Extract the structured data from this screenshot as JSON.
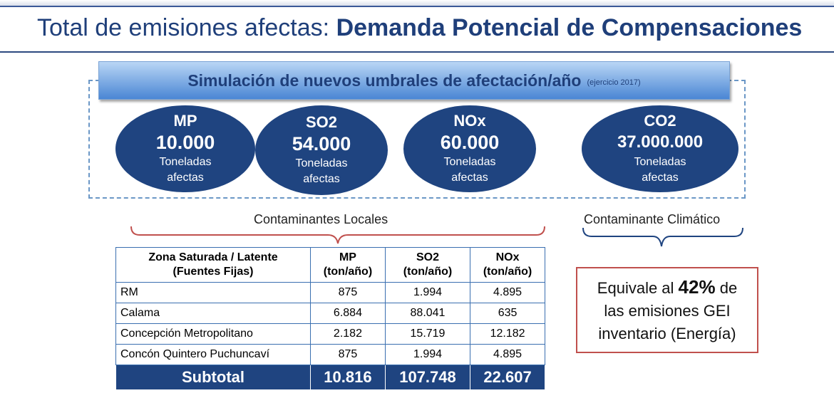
{
  "header": {
    "title_plain": "Total de emisiones afectas: ",
    "title_bold": "Demanda Potencial de Compensaciones"
  },
  "banner": {
    "text": "Simulación de nuevos umbrales de afectación/año",
    "note": "(ejercicio 2017)"
  },
  "pollutants": [
    {
      "name": "MP",
      "value": "10.000",
      "unit_line1": "Toneladas",
      "unit_line2": "afectas"
    },
    {
      "name": "SO2",
      "value": "54.000",
      "unit_line1": "Toneladas",
      "unit_line2": "afectas"
    },
    {
      "name": "NOx",
      "value": "60.000",
      "unit_line1": "Toneladas",
      "unit_line2": "afectas"
    },
    {
      "name": "CO2",
      "value": "37.000.000",
      "unit_line1": "Toneladas",
      "unit_line2": "afectas"
    }
  ],
  "captions": {
    "local": "Contaminantes Locales",
    "climate": "Contaminante Climático"
  },
  "table": {
    "headers": [
      {
        "line1": "Zona Saturada / Latente",
        "line2": "(Fuentes Fijas)"
      },
      {
        "line1": "MP",
        "line2": "(ton/año)"
      },
      {
        "line1": "SO2",
        "line2": "(ton/año)"
      },
      {
        "line1": "NOx",
        "line2": "(ton/año)"
      }
    ],
    "rows": [
      [
        "RM",
        "875",
        "1.994",
        "4.895"
      ],
      [
        "Calama",
        "6.884",
        "88.041",
        "635"
      ],
      [
        "Concepción Metropolitano",
        "2.182",
        "15.719",
        "12.182"
      ],
      [
        "Concón Quintero Puchuncaví",
        "875",
        "1.994",
        "4.895"
      ]
    ],
    "subtotal": [
      "Subtotal",
      "10.816",
      "107.748",
      "22.607"
    ]
  },
  "equivalence": {
    "pre": "Equivale al ",
    "pct": "42%",
    "post": " de",
    "line2": "las emisiones GEI",
    "line3": "inventario (Energía)"
  },
  "colors": {
    "ellipse": "#1f4480",
    "title": "#1f3f7a",
    "brace_local": "#c0504d",
    "brace_climate": "#1f4480",
    "equiv_border": "#c0504d"
  }
}
